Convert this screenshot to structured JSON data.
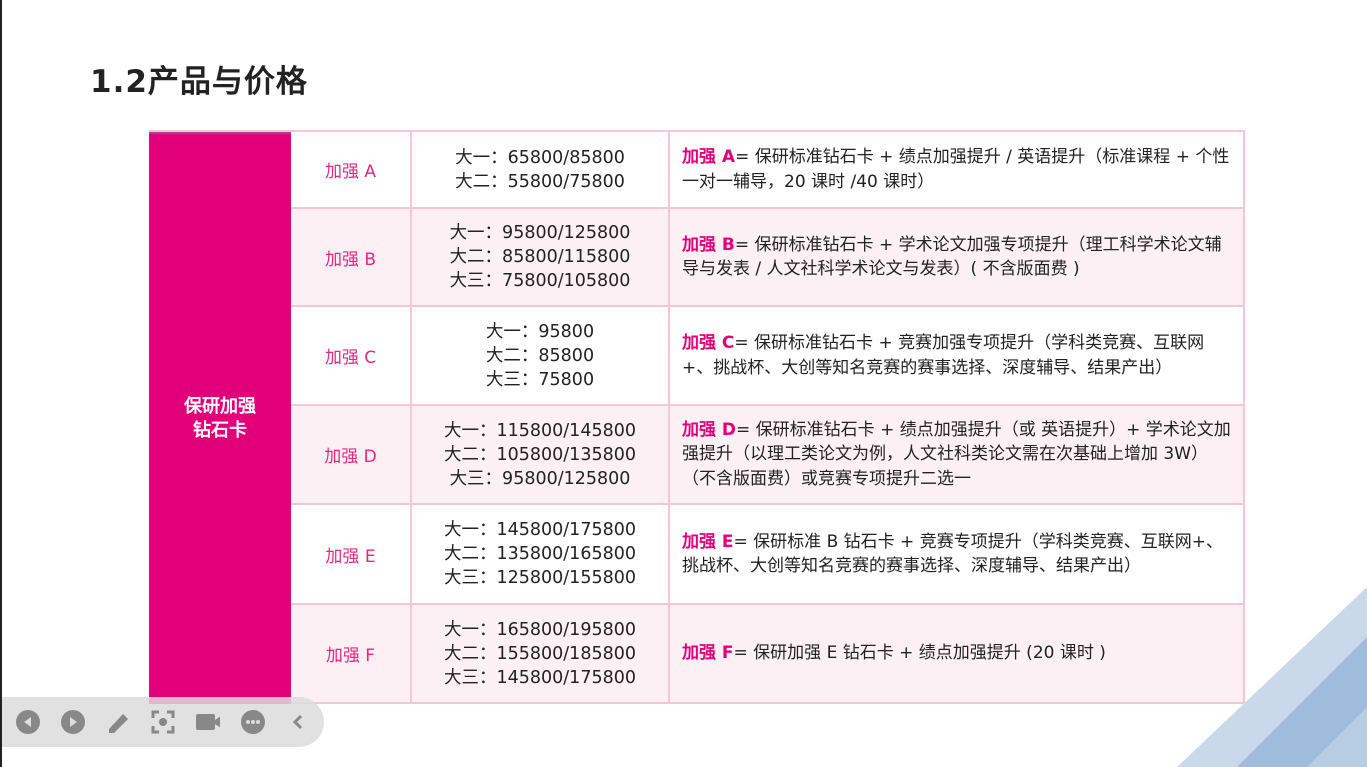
{
  "title": "1.2产品与价格",
  "category": "保研加强\n钻石卡",
  "rows": [
    {
      "name": "加强 A",
      "prices": [
        "大一：65800/85800",
        "大二：55800/75800"
      ],
      "desc_key": "加强 A",
      "desc": "= 保研标准钻石卡 + 绩点加强提升 / 英语提升（标准课程 + 个性一对一辅导，20 课时 /40 课时）"
    },
    {
      "name": "加强 B",
      "prices": [
        "大一：95800/125800",
        "大二：85800/115800",
        "大三：75800/105800"
      ],
      "desc_key": "加强 B",
      "desc": "= 保研标准钻石卡 + 学术论文加强专项提升（理工科学术论文辅导与发表 / 人文社科学术论文与发表）( 不含版面费 )"
    },
    {
      "name": "加强 C",
      "prices": [
        "大一：95800",
        "大二：85800",
        "大三：75800"
      ],
      "desc_key": "加强 C",
      "desc": "= 保研标准钻石卡 + 竞赛加强专项提升（学科类竞赛、互联网+、挑战杯、大创等知名竞赛的赛事选择、深度辅导、结果产出）"
    },
    {
      "name": "加强 D",
      "prices": [
        "大一：115800/145800",
        "大二：105800/135800",
        "大三：95800/125800"
      ],
      "desc_key": "加强 D",
      "desc": "= 保研标准钻石卡 + 绩点加强提升（或 英语提升）+ 学术论文加强提升（以理工类论文为例，人文社科类论文需在次基础上增加 3W）（不含版面费）或竞赛专项提升二选一"
    },
    {
      "name": "加强 E",
      "prices": [
        "大一：145800/175800",
        "大二：135800/165800",
        "大三：125800/155800"
      ],
      "desc_key": "加强 E",
      "desc": "= 保研标准 B 钻石卡 + 竞赛专项提升（学科类竞赛、互联网+、挑战杯、大创等知名竞赛的赛事选择、深度辅导、结果产出）"
    },
    {
      "name": "加强 F",
      "prices": [
        "大一：165800/195800",
        "大二：155800/185800",
        "大三：145800/175800"
      ],
      "desc_key": "加强 F",
      "desc": "= 保研加强 E 钻石卡 + 绩点加强提升 (20 课时 )"
    }
  ],
  "colors": {
    "accent": "#e2007a",
    "row_alt": "#fdf0f5",
    "border": "#f4c6d6"
  },
  "toolbar": [
    "prev-icon",
    "next-icon",
    "pen-icon",
    "screenshot-icon",
    "camera-icon",
    "more-icon",
    "collapse-icon"
  ]
}
